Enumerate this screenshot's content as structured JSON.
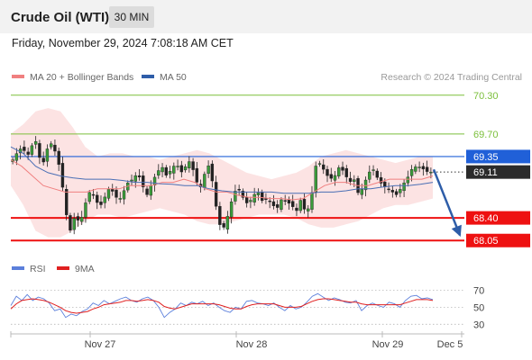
{
  "header": {
    "title": "Crude Oil (WTI)",
    "timeframe": "30 MIN"
  },
  "datetime": "Friday, November 29, 2024 7:08:18 AM CET",
  "legend": {
    "ma20": {
      "label": "MA 20 + Bollinger Bands",
      "color": "#f08080"
    },
    "ma50": {
      "label": "MA 50",
      "color": "#2e5da8"
    },
    "rsi": {
      "label": "RSI",
      "color": "#5b7fdb"
    },
    "ma9": {
      "label": "9MA",
      "color": "#e02020"
    }
  },
  "credit": "Research © 2024 Trading Central",
  "chart_data": [
    {
      "type": "candlestick",
      "instrument": "Crude Oil (WTI)",
      "timeframe": "30 MIN",
      "x_ticks": [
        "Nov 27",
        "Nov 28",
        "Nov 29",
        "Dec 5"
      ],
      "ylim": [
        67.9,
        70.45
      ],
      "levels": [
        {
          "value": 70.3,
          "label": "70.30",
          "kind": "resistance",
          "color": "#7bbf3a"
        },
        {
          "value": 69.7,
          "label": "69.70",
          "kind": "resistance",
          "color": "#7bbf3a"
        },
        {
          "value": 69.35,
          "label": "69.35",
          "kind": "pivot",
          "color": "#2060d8"
        },
        {
          "value": 68.4,
          "label": "68.40",
          "kind": "support",
          "color": "#ee1111"
        },
        {
          "value": 68.05,
          "label": "68.05",
          "kind": "support",
          "color": "#ee1111"
        }
      ],
      "last_price": {
        "value": 69.11,
        "label": "69.11"
      },
      "forecast_arrow": {
        "from": 69.15,
        "to": 68.05,
        "direction": "down",
        "color": "#2e5da8"
      },
      "close_path": [
        69.3,
        69.42,
        69.5,
        69.35,
        69.52,
        69.6,
        69.15,
        69.45,
        69.55,
        69.4,
        69.1,
        68.5,
        68.2,
        68.45,
        68.3,
        68.6,
        68.8,
        68.75,
        68.55,
        68.7,
        68.85,
        68.8,
        68.65,
        68.8,
        68.95,
        69.0,
        69.1,
        68.9,
        68.75,
        68.95,
        69.1,
        69.2,
        69.05,
        69.15,
        69.25,
        69.1,
        69.2,
        69.3,
        69.0,
        68.85,
        69.1,
        69.25,
        68.7,
        68.3,
        68.25,
        68.5,
        68.8,
        68.85,
        68.7,
        68.6,
        68.75,
        68.8,
        68.65,
        68.7,
        68.6,
        68.55,
        68.7,
        68.65,
        68.6,
        68.5,
        68.7,
        68.45,
        68.65,
        69.2,
        69.25,
        69.1,
        69.0,
        69.05,
        69.2,
        69.1,
        68.95,
        69.0,
        68.75,
        68.9,
        69.1,
        69.15,
        69.0,
        68.9,
        68.85,
        68.8,
        68.75,
        68.9,
        69.0,
        69.15,
        69.2,
        69.18,
        69.12,
        69.11
      ],
      "ma20_path": [
        69.3,
        69.2,
        69.05,
        68.9,
        68.85,
        68.8,
        68.8,
        68.8,
        68.85,
        68.85,
        68.85,
        68.9,
        68.9,
        68.9,
        68.95,
        68.95,
        69.0,
        68.95,
        68.85,
        68.8,
        68.8,
        68.75,
        68.72,
        68.72,
        68.7,
        68.7,
        68.68,
        68.7,
        68.8,
        68.9,
        68.95,
        68.95,
        68.9,
        68.9,
        68.95,
        69.0,
        69.0,
        69.0,
        69.0,
        69.05
      ],
      "ma50_path": [
        69.5,
        69.4,
        69.2,
        69.1,
        69.05,
        69.02,
        69.0,
        69.0,
        69.0,
        68.98,
        68.95,
        68.95,
        68.93,
        68.92,
        68.9,
        68.9,
        68.85,
        68.82,
        68.8,
        68.8,
        68.8,
        68.8,
        68.78,
        68.78,
        68.78,
        68.8,
        68.8,
        68.82,
        68.85,
        68.85,
        68.88,
        68.9,
        68.9,
        68.92,
        68.95
      ],
      "bb_upper_path": [
        69.7,
        69.85,
        70.05,
        70.1,
        70.05,
        69.8,
        69.5,
        69.35,
        69.4,
        69.4,
        69.35,
        69.35,
        69.3,
        69.35,
        69.4,
        69.45,
        69.4,
        69.3,
        69.2,
        69.1,
        69.05,
        69.0,
        69.05,
        69.1,
        69.2,
        69.35,
        69.4,
        69.45,
        69.4,
        69.35,
        69.3,
        69.25,
        69.3,
        69.35,
        69.35
      ],
      "bb_lower_path": [
        68.9,
        68.6,
        68.2,
        68.1,
        68.1,
        68.2,
        68.35,
        68.45,
        68.45,
        68.4,
        68.45,
        68.5,
        68.55,
        68.5,
        68.45,
        68.35,
        68.3,
        68.3,
        68.35,
        68.4,
        68.45,
        68.45,
        68.45,
        68.4,
        68.3,
        68.25,
        68.25,
        68.3,
        68.35,
        68.45,
        68.55,
        68.6,
        68.6,
        68.65,
        68.7
      ]
    },
    {
      "type": "line",
      "title": "RSI",
      "yticks": [
        70,
        50,
        30
      ],
      "ylim": [
        25,
        78
      ],
      "series": [
        {
          "name": "RSI",
          "color": "#5b7fdb",
          "values": [
            52,
            63,
            58,
            65,
            58,
            62,
            60,
            55,
            46,
            48,
            38,
            42,
            40,
            45,
            48,
            55,
            52,
            58,
            54,
            57,
            60,
            62,
            58,
            56,
            60,
            62,
            58,
            50,
            38,
            44,
            48,
            55,
            52,
            56,
            54,
            57,
            52,
            55,
            50,
            46,
            44,
            50,
            48,
            57,
            58,
            55,
            54,
            52,
            55,
            50,
            46,
            52,
            48,
            50,
            56,
            63,
            66,
            62,
            58,
            61,
            59,
            56,
            55,
            58,
            46,
            52,
            55,
            52,
            50,
            56,
            54,
            50,
            58,
            63,
            64,
            60,
            61,
            59
          ]
        },
        {
          "name": "9MA",
          "color": "#e02020",
          "values": [
            48,
            54,
            58,
            59,
            60,
            59,
            58,
            56,
            53,
            50,
            46,
            44,
            43,
            44,
            45,
            48,
            50,
            53,
            54,
            55,
            56,
            58,
            58,
            57,
            58,
            59,
            58,
            56,
            51,
            49,
            48,
            50,
            52,
            54,
            54,
            54,
            54,
            54,
            53,
            51,
            49,
            48,
            48,
            51,
            53,
            54,
            54,
            54,
            54,
            52,
            50,
            50,
            50,
            51,
            54,
            57,
            59,
            60,
            60,
            59,
            58,
            57,
            56,
            56,
            54,
            53,
            53,
            53,
            53,
            53,
            53,
            53,
            55,
            57,
            59,
            59,
            59,
            58
          ]
        }
      ]
    }
  ]
}
